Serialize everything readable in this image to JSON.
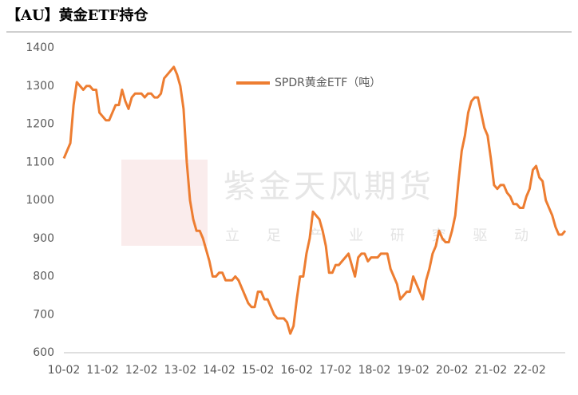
{
  "chart_data": {
    "type": "line",
    "title": "【AU】黄金ETF持仓",
    "watermark": {
      "brand": "紫金天风期货",
      "slogan": "立 足 产 业 研 究 驱 动"
    },
    "categories": [
      "10-02",
      null,
      null,
      null,
      null,
      null,
      null,
      null,
      null,
      null,
      null,
      null,
      "11-02",
      null,
      null,
      null,
      null,
      null,
      null,
      null,
      null,
      null,
      null,
      null,
      "12-02",
      null,
      null,
      null,
      null,
      null,
      null,
      null,
      null,
      null,
      null,
      null,
      "13-02",
      null,
      null,
      null,
      null,
      null,
      null,
      null,
      null,
      null,
      null,
      null,
      "14-02",
      null,
      null,
      null,
      null,
      null,
      null,
      null,
      null,
      null,
      null,
      null,
      "15-02",
      null,
      null,
      null,
      null,
      null,
      null,
      null,
      null,
      null,
      null,
      null,
      "16-02",
      null,
      null,
      null,
      null,
      null,
      null,
      null,
      null,
      null,
      null,
      null,
      "17-02",
      null,
      null,
      null,
      null,
      null,
      null,
      null,
      null,
      null,
      null,
      null,
      "18-02",
      null,
      null,
      null,
      null,
      null,
      null,
      null,
      null,
      null,
      null,
      null,
      "19-02",
      null,
      null,
      null,
      null,
      null,
      null,
      null,
      null,
      null,
      null,
      null,
      "20-02",
      null,
      null,
      null,
      null,
      null,
      null,
      null,
      null,
      null,
      null,
      null,
      "21-02",
      null,
      null,
      null,
      null,
      null,
      null,
      null,
      null,
      null,
      null,
      null,
      "22-02",
      null,
      null,
      null,
      null,
      null,
      null,
      null,
      null,
      null,
      null,
      null
    ],
    "series": [
      {
        "name": "SPDR黄金ETF（吨）",
        "color": "#ed7d31",
        "values": [
          1110,
          1130,
          1150,
          1250,
          1310,
          1300,
          1290,
          1300,
          1300,
          1290,
          1290,
          1230,
          1220,
          1210,
          1210,
          1230,
          1250,
          1250,
          1290,
          1260,
          1240,
          1270,
          1280,
          1280,
          1280,
          1270,
          1280,
          1280,
          1270,
          1270,
          1280,
          1320,
          1330,
          1340,
          1350,
          1330,
          1300,
          1240,
          1100,
          1000,
          950,
          920,
          920,
          900,
          870,
          840,
          800,
          800,
          810,
          810,
          790,
          790,
          790,
          800,
          790,
          770,
          750,
          730,
          720,
          720,
          760,
          760,
          740,
          740,
          720,
          700,
          690,
          690,
          690,
          680,
          650,
          670,
          740,
          800,
          800,
          860,
          900,
          970,
          960,
          950,
          920,
          880,
          810,
          810,
          830,
          830,
          840,
          850,
          860,
          830,
          800,
          850,
          860,
          860,
          840,
          850,
          850,
          850,
          860,
          860,
          860,
          820,
          800,
          780,
          740,
          750,
          760,
          760,
          800,
          780,
          760,
          740,
          790,
          820,
          860,
          880,
          920,
          900,
          890,
          890,
          920,
          960,
          1050,
          1130,
          1170,
          1230,
          1260,
          1270,
          1270,
          1230,
          1190,
          1170,
          1110,
          1040,
          1030,
          1040,
          1040,
          1020,
          1010,
          990,
          990,
          980,
          980,
          1010,
          1030,
          1080,
          1090,
          1060,
          1050,
          1000,
          980,
          960,
          930,
          910,
          910,
          920
        ]
      }
    ],
    "ylim": [
      600,
      1400
    ],
    "yticks": [
      600,
      700,
      800,
      900,
      1000,
      1100,
      1200,
      1300,
      1400
    ],
    "grid": false
  }
}
